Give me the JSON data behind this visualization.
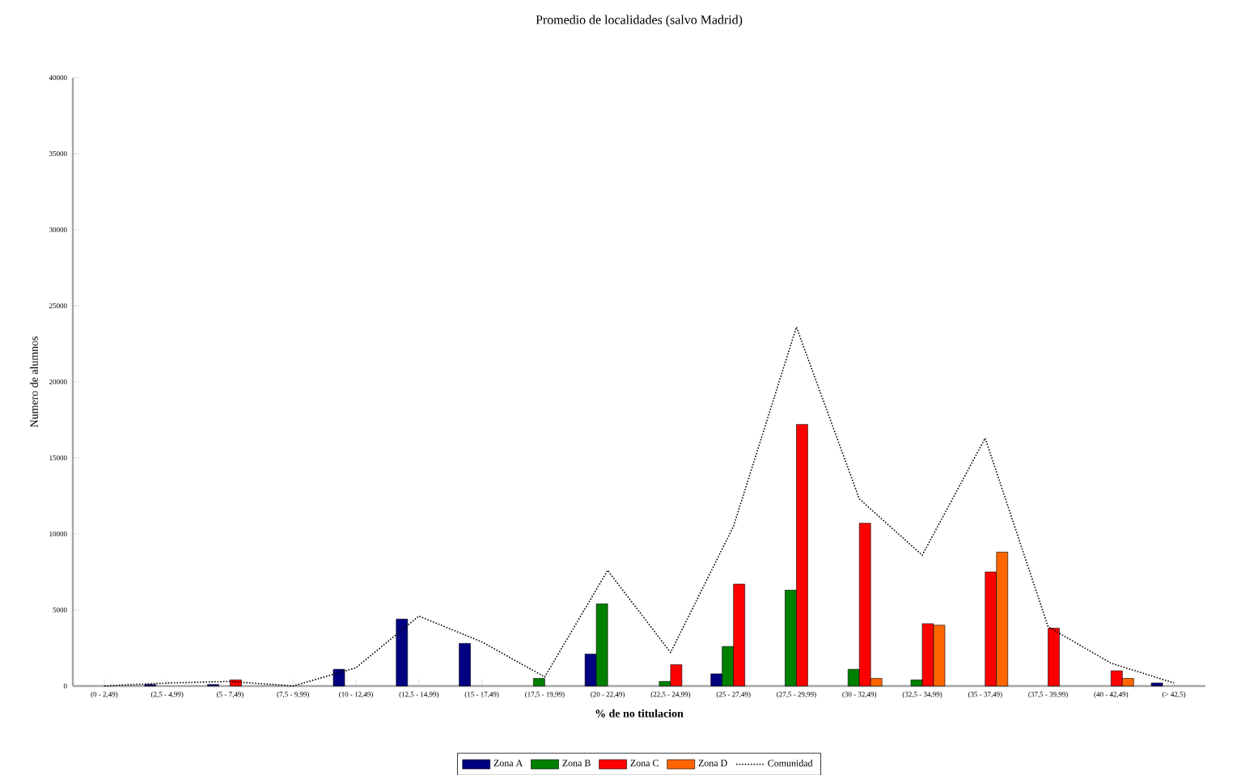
{
  "chart_data": {
    "type": "bar",
    "title": "Promedio de localidades (salvo Madrid)",
    "xlabel": "% de no titulacion",
    "ylabel": "Numero de alumnos",
    "categories": [
      "(0 - 2,49)",
      "(2,5 - 4,99)",
      "(5 - 7,49)",
      "(7,5 - 9,99)",
      "(10 - 12,49)",
      "(12,5 - 14,99)",
      "(15 - 17,49)",
      "(17,5 - 19,99)",
      "(20 - 22,49)",
      "(22,5 - 24,99)",
      "(25 - 27,49)",
      "(27,5 - 29,99)",
      "(30 - 32,49)",
      "(32,5 - 34,99)",
      "(35 - 37,49)",
      "(37,5 - 39,99)",
      "(40 - 42,49)",
      "(> 42,5)"
    ],
    "series": [
      {
        "name": "Zona A",
        "color": "#000080",
        "values": [
          null,
          100,
          100,
          null,
          1100,
          4400,
          2800,
          null,
          2100,
          null,
          800,
          null,
          null,
          null,
          null,
          null,
          null,
          200
        ]
      },
      {
        "name": "Zona B",
        "color": "#008000",
        "values": [
          null,
          null,
          null,
          null,
          null,
          null,
          null,
          500,
          5400,
          300,
          2600,
          6300,
          1100,
          400,
          null,
          null,
          null,
          null
        ]
      },
      {
        "name": "Zona C",
        "color": "#ff0000",
        "values": [
          null,
          null,
          400,
          null,
          null,
          null,
          null,
          null,
          null,
          1400,
          6700,
          17200,
          10700,
          4100,
          7500,
          3800,
          1000,
          null
        ]
      },
      {
        "name": "Zona D",
        "color": "#ff6600",
        "values": [
          null,
          null,
          null,
          null,
          null,
          null,
          null,
          null,
          null,
          null,
          null,
          null,
          500,
          4000,
          8800,
          null,
          500,
          null
        ]
      },
      {
        "name": "Comunidad",
        "type": "line",
        "color": "#000000",
        "line_style": "dotted",
        "values": [
          0,
          200,
          300,
          0,
          1200,
          4600,
          2900,
          600,
          7600,
          2200,
          10500,
          23600,
          12300,
          8600,
          16300,
          3900,
          1500,
          200
        ]
      }
    ],
    "ylim": [
      0,
      40000
    ],
    "yticks": [
      0,
      5000,
      10000,
      15000,
      20000,
      25000,
      30000,
      35000,
      40000
    ],
    "legend": "bottom"
  }
}
